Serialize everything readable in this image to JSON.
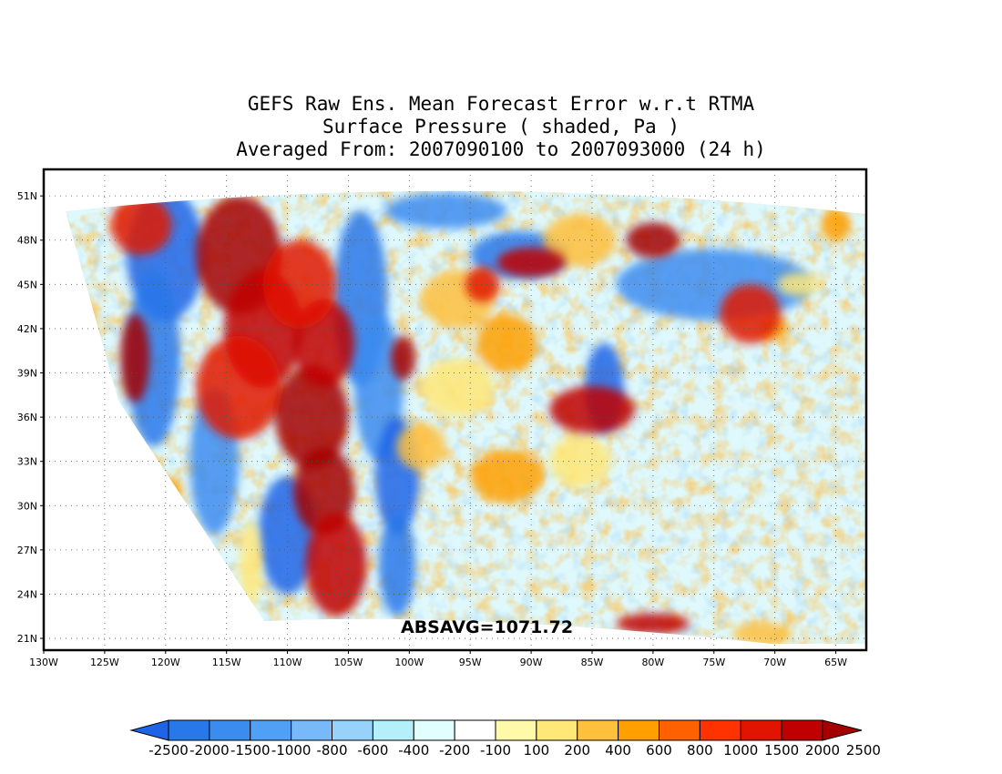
{
  "title": {
    "line1": "GEFS Raw Ens. Mean Forecast Error w.r.t RTMA",
    "line2": "Surface Pressure ( shaded, Pa )",
    "line3": "Averaged From: 2007090100 to 2007093000 (24 h)"
  },
  "map": {
    "lat_labels": [
      "51N",
      "48N",
      "45N",
      "42N",
      "39N",
      "36N",
      "33N",
      "30N",
      "27N",
      "24N",
      "21N"
    ],
    "lat_values": [
      51,
      48,
      45,
      42,
      39,
      36,
      33,
      30,
      27,
      24,
      21
    ],
    "lon_labels": [
      "130W",
      "125W",
      "120W",
      "115W",
      "110W",
      "105W",
      "100W",
      "95W",
      "90W",
      "85W",
      "80W",
      "75W",
      "70W",
      "65W"
    ],
    "lon_values": [
      -130,
      -125,
      -120,
      -115,
      -110,
      -105,
      -100,
      -95,
      -90,
      -85,
      -80,
      -75,
      -70,
      -65
    ],
    "lat_range": [
      20.2,
      52.8
    ],
    "lon_range": [
      -130,
      -62.5
    ],
    "grid": "dotted",
    "statistic_label": "ABSAVG=1071.72"
  },
  "colorbar": {
    "levels": [
      "-2500",
      "-2000",
      "-1500",
      "-1000",
      "-800",
      "-600",
      "-400",
      "-200",
      "-100",
      "100",
      "200",
      "400",
      "600",
      "800",
      "1000",
      "1500",
      "2000",
      "2500"
    ],
    "colors": [
      "#1e64e6",
      "#2878ea",
      "#3c8cf0",
      "#50a0f5",
      "#78b9fa",
      "#96d2fa",
      "#b4f0fa",
      "#e1ffff",
      "#ffffff",
      "#fffaaa",
      "#ffe878",
      "#ffc03c",
      "#ffa000",
      "#ff6000",
      "#ff3200",
      "#e11400",
      "#c00000",
      "#a50000"
    ],
    "extend": "both"
  },
  "fields": {
    "blue_bands": [
      {
        "lat": 47,
        "lon": -120,
        "rlat": 4.5,
        "rlon": 3.2
      },
      {
        "lat": 40,
        "lon": -121,
        "rlat": 6,
        "rlon": 2.2
      },
      {
        "lat": 33,
        "lon": -116,
        "rlat": 5,
        "rlon": 2
      },
      {
        "lat": 28,
        "lon": -110,
        "rlat": 4,
        "rlon": 2.4
      },
      {
        "lat": 44,
        "lon": -104,
        "rlat": 6,
        "rlon": 2.2
      },
      {
        "lat": 38,
        "lon": -102.5,
        "rlat": 5,
        "rlon": 2
      },
      {
        "lat": 32,
        "lon": -101,
        "rlat": 4,
        "rlon": 1.8
      },
      {
        "lat": 26,
        "lon": -101,
        "rlat": 3.5,
        "rlon": 1.5
      },
      {
        "lat": 45,
        "lon": -75,
        "rlat": 2.4,
        "rlon": 8
      },
      {
        "lat": 38,
        "lon": -84,
        "rlat": 3,
        "rlon": 1.6
      },
      {
        "lat": 47,
        "lon": -91,
        "rlat": 1.6,
        "rlon": 4
      },
      {
        "lat": 50,
        "lon": -97,
        "rlat": 1.2,
        "rlon": 5
      }
    ],
    "red_regions": [
      {
        "lat": 47,
        "lon": -114,
        "rlat": 4,
        "rlon": 3.5
      },
      {
        "lat": 42,
        "lon": -112,
        "rlat": 4,
        "rlon": 3.2
      },
      {
        "lat": 38,
        "lon": -114,
        "rlat": 3.5,
        "rlon": 3.5
      },
      {
        "lat": 36,
        "lon": -108,
        "rlat": 3.5,
        "rlon": 3
      },
      {
        "lat": 41,
        "lon": -107,
        "rlat": 3,
        "rlon": 2.5
      },
      {
        "lat": 45,
        "lon": -109,
        "rlat": 3,
        "rlon": 3
      },
      {
        "lat": 31,
        "lon": -107,
        "rlat": 3,
        "rlon": 2.5
      },
      {
        "lat": 26,
        "lon": -106,
        "rlat": 3.5,
        "rlon": 2.5
      },
      {
        "lat": 49,
        "lon": -122,
        "rlat": 2,
        "rlon": 2.5
      },
      {
        "lat": 40,
        "lon": -122.5,
        "rlat": 3,
        "rlon": 1.2
      },
      {
        "lat": 36.5,
        "lon": -85,
        "rlat": 1.6,
        "rlon": 3.5
      },
      {
        "lat": 43,
        "lon": -72,
        "rlat": 2,
        "rlon": 2.5
      },
      {
        "lat": 48,
        "lon": -80,
        "rlat": 1.2,
        "rlon": 2.2
      },
      {
        "lat": 46.5,
        "lon": -90,
        "rlat": 1,
        "rlon": 2.8
      },
      {
        "lat": 45,
        "lon": -94,
        "rlat": 1.2,
        "rlon": 1.4
      },
      {
        "lat": 40,
        "lon": -100.5,
        "rlat": 1.5,
        "rlon": 1
      },
      {
        "lat": 22,
        "lon": -80,
        "rlat": 0.7,
        "rlon": 3
      }
    ],
    "orange_patches": [
      {
        "lat": 42,
        "lon": -126.5,
        "rlat": 2.2,
        "rlon": 0.9
      },
      {
        "lat": 31,
        "lon": -120,
        "rlat": 1,
        "rlon": 1.4
      },
      {
        "lat": 26,
        "lon": -113,
        "rlat": 3,
        "rlon": 0.9
      },
      {
        "lat": 44,
        "lon": -96,
        "rlat": 2,
        "rlon": 3
      },
      {
        "lat": 41,
        "lon": -92,
        "rlat": 2,
        "rlon": 2.5
      },
      {
        "lat": 38,
        "lon": -96,
        "rlat": 2,
        "rlon": 3
      },
      {
        "lat": 34,
        "lon": -99,
        "rlat": 1.6,
        "rlon": 2
      },
      {
        "lat": 32,
        "lon": -92,
        "rlat": 1.8,
        "rlon": 3
      },
      {
        "lat": 33,
        "lon": -86,
        "rlat": 1.8,
        "rlon": 2.5
      },
      {
        "lat": 48,
        "lon": -86,
        "rlat": 1.8,
        "rlon": 3
      },
      {
        "lat": 49,
        "lon": -65,
        "rlat": 1.2,
        "rlon": 1.2
      },
      {
        "lat": 45,
        "lon": -68,
        "rlat": 0.8,
        "rlon": 1.8
      },
      {
        "lat": 21.3,
        "lon": -71,
        "rlat": 0.8,
        "rlon": 2.5
      },
      {
        "lat": 42,
        "lon": -70,
        "rlat": 0.8,
        "rlon": 1.2
      }
    ]
  }
}
